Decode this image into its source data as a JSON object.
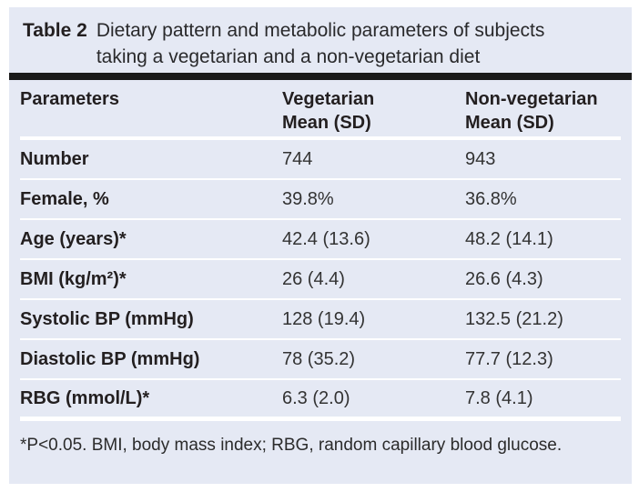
{
  "colors": {
    "panel_background": "#e5e9f4",
    "caption_rule": "#1a1a1a",
    "row_separator": "#ffffff",
    "text": "#262626"
  },
  "caption": {
    "label": "Table 2",
    "text": "Dietary pattern and metabolic parameters of subjects taking a vegetarian and a non-vegetarian diet"
  },
  "table": {
    "columns": [
      {
        "label": "Parameters",
        "sublabel": ""
      },
      {
        "label": "Vegetarian",
        "sublabel": "Mean (SD)"
      },
      {
        "label": "Non-vegetarian",
        "sublabel": "Mean (SD)"
      }
    ],
    "rows": [
      {
        "parameter": "Number",
        "vegetarian": "744",
        "non_vegetarian": "943"
      },
      {
        "parameter": "Female, %",
        "vegetarian": "39.8%",
        "non_vegetarian": "36.8%"
      },
      {
        "parameter": "Age (years)*",
        "vegetarian": "42.4 (13.6)",
        "non_vegetarian": "48.2 (14.1)"
      },
      {
        "parameter": "BMI (kg/m²)*",
        "vegetarian": "26 (4.4)",
        "non_vegetarian": "26.6 (4.3)"
      },
      {
        "parameter": "Systolic BP (mmHg)",
        "vegetarian": "128 (19.4)",
        "non_vegetarian": "132.5 (21.2)"
      },
      {
        "parameter": "Diastolic BP (mmHg)",
        "vegetarian": "78 (35.2)",
        "non_vegetarian": "77.7 (12.3)"
      },
      {
        "parameter": "RBG (mmol/L)*",
        "vegetarian": "6.3 (2.0)",
        "non_vegetarian": "7.8 (4.1)"
      }
    ]
  },
  "footnote": "*P<0.05. BMI, body mass index; RBG, random capillary blood glucose."
}
